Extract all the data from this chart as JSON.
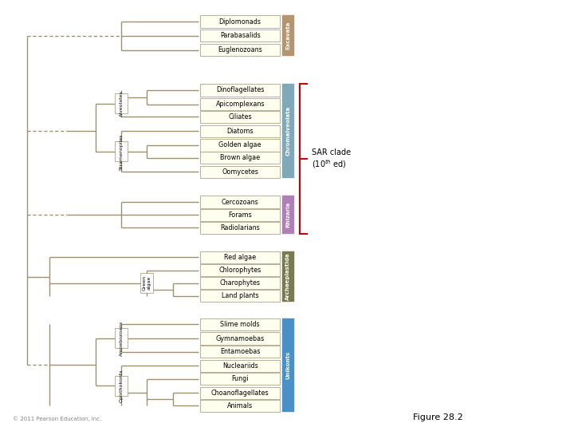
{
  "background": "#ffffff",
  "line_color": "#a09070",
  "line_width": 1.0,
  "box_bg": "#fffff0",
  "box_border": "#a09070",
  "label_fontsize": 5.8,
  "groups": [
    {
      "name": "Excavata",
      "color": "#b5956e",
      "taxa": [
        "Diplomonads",
        "Parabasalids",
        "Euglenozoans"
      ],
      "y": [
        0.938,
        0.895,
        0.852
      ]
    },
    {
      "name": "Chromalveolata",
      "color": "#7fa8b8",
      "taxa": [
        "Dinoflagellates",
        "Apicomplexans",
        "Ciliates",
        "Diatoms",
        "Golden algae",
        "Brown algae",
        "Oomycetes"
      ],
      "y": [
        0.73,
        0.687,
        0.649,
        0.606,
        0.563,
        0.525,
        0.482
      ]
    },
    {
      "name": "Rhizaria",
      "color": "#b07fb8",
      "taxa": [
        "Cercozoans",
        "Forams",
        "Radiolarians"
      ],
      "y": [
        0.391,
        0.352,
        0.313
      ]
    },
    {
      "name": "Archaeplastida",
      "color": "#7a7a50",
      "taxa": [
        "Red algae",
        "Chlorophytes",
        "Charophytes",
        "Land plants"
      ],
      "y": [
        0.223,
        0.184,
        0.145,
        0.106
      ]
    },
    {
      "name": "Unikonts",
      "color": "#4a90c8",
      "taxa": [
        "Slime molds",
        "Gymnamoebas",
        "Entamoebas",
        "Nucleariids",
        "Fungi",
        "Choanoflagellates",
        "Animals"
      ],
      "y": [
        0.02,
        -0.023,
        -0.063,
        -0.106,
        -0.145,
        -0.188,
        -0.227
      ]
    }
  ],
  "sar_color": "#cc0000",
  "figure_label": "Figure 28.2",
  "copyright": "© 2011 Pearson Education, Inc."
}
